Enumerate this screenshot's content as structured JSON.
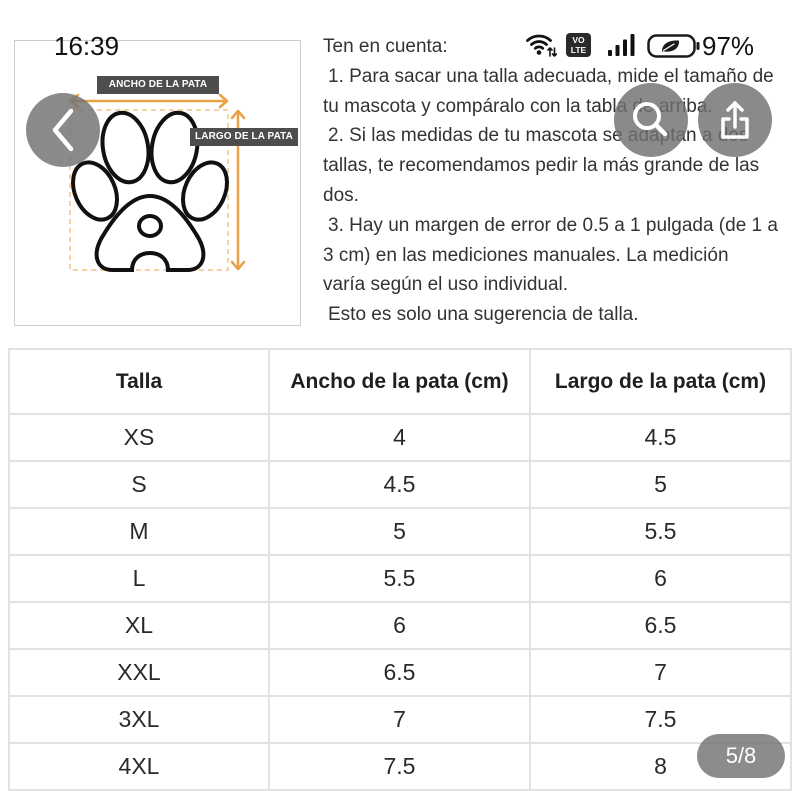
{
  "status_bar": {
    "time": "16:39",
    "network_badge": {
      "top": "VO",
      "bottom": "LTE"
    },
    "battery_percent": "97%",
    "icons": [
      "wifi-icon",
      "volte-icon",
      "signal-icon",
      "battery-saver-icon"
    ]
  },
  "viewer": {
    "back_icon": "chevron-left-icon",
    "search_icon": "search-icon",
    "share_icon": "share-icon",
    "page_indicator": "5/8"
  },
  "theme": {
    "accent": "#e9a046",
    "accent_light": "#f3c486",
    "overlay": "rgba(112,112,112,0.82)",
    "label_bg": "#4d4d4d"
  },
  "product_image": {
    "diagram": {
      "icon": "paw-icon",
      "width_label": "ANCHO DE LA PATA",
      "length_label": "LARGO DE LA PATA"
    },
    "notes": {
      "heading": "Ten en cuenta:",
      "items": [
        {
          "lines": [
            "1. Para sacar una talla adecuada, mide el tamaño de",
            "tu mascota y compáralo con la tabla de arriba."
          ]
        },
        {
          "lines": [
            "2. Si las medidas de tu mascota se adaptan a dos",
            "tallas, te recomendamos pedir la más grande de las",
            "dos."
          ]
        },
        {
          "lines": [
            "3. Hay un margen de error de 0.5 a 1 pulgada (de 1 a",
            "3 cm) en las mediciones manuales. La medición",
            "varía según el uso individual."
          ]
        }
      ],
      "footer": "Esto es solo una sugerencia de talla."
    },
    "size_table": {
      "headers": [
        "Talla",
        "Ancho de la pata (cm)",
        "Largo de la pata (cm)"
      ],
      "rows": [
        {
          "size": "XS",
          "paw_width_cm": "4",
          "paw_length_cm": "4.5"
        },
        {
          "size": "S",
          "paw_width_cm": "4.5",
          "paw_length_cm": "5"
        },
        {
          "size": "M",
          "paw_width_cm": "5",
          "paw_length_cm": "5.5"
        },
        {
          "size": "L",
          "paw_width_cm": "5.5",
          "paw_length_cm": "6"
        },
        {
          "size": "XL",
          "paw_width_cm": "6",
          "paw_length_cm": "6.5"
        },
        {
          "size": "XXL",
          "paw_width_cm": "6.5",
          "paw_length_cm": "7"
        },
        {
          "size": "3XL",
          "paw_width_cm": "7",
          "paw_length_cm": "7.5"
        },
        {
          "size": "4XL",
          "paw_width_cm": "7.5",
          "paw_length_cm": "8"
        }
      ]
    }
  }
}
